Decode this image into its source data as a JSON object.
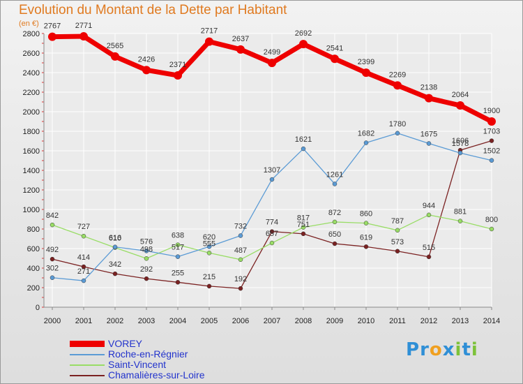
{
  "title": "Evolution du Montant de la Dette par Habitant",
  "unit": "(en €)",
  "brand": {
    "text": "Proxiti",
    "letters": [
      "P",
      "r",
      "o",
      "x",
      "i",
      "t",
      "i"
    ],
    "colors": [
      "#2f8fd6",
      "#2f8fd6",
      "#f0a020",
      "#2f8fd6",
      "#7dc23a",
      "#2f8fd6",
      "#7dc23a"
    ]
  },
  "chart_data": {
    "type": "line",
    "title": "Evolution du Montant de la Dette par Habitant",
    "ylabel": "(en €)",
    "xlabel": "",
    "x": [
      2000,
      2001,
      2002,
      2003,
      2004,
      2005,
      2006,
      2007,
      2008,
      2009,
      2010,
      2011,
      2012,
      2013,
      2014
    ],
    "ylim": [
      0,
      2800
    ],
    "yticks": [
      0,
      200,
      400,
      600,
      800,
      1000,
      1200,
      1400,
      1600,
      1800,
      2000,
      2200,
      2400,
      2600,
      2800
    ],
    "grid": true,
    "legend_position": "bottom-left",
    "series": [
      {
        "name": "VOREY",
        "color": "#ee0000",
        "values": [
          2767,
          2771,
          2565,
          2426,
          2371,
          2717,
          2637,
          2499,
          2692,
          2541,
          2399,
          2269,
          2138,
          2064,
          1900
        ],
        "labels": [
          "2767",
          "2771",
          "2565",
          "2426",
          "2371",
          "2717",
          "2637",
          "2499",
          "2692",
          "2541",
          "2399",
          "2269",
          "2138",
          "2064",
          "1900"
        ]
      },
      {
        "name": "Roche-en-Régnier",
        "color": "#5b9bd5",
        "values": [
          302,
          271,
          616,
          576,
          517,
          620,
          732,
          1307,
          1621,
          1261,
          1682,
          1780,
          1675,
          1578,
          1502
        ],
        "labels": [
          "302",
          "271",
          "616",
          "576",
          "517",
          "620",
          "732",
          "1307",
          "1621",
          "1261",
          "1682",
          "1780",
          "1675",
          "1578",
          "1502"
        ]
      },
      {
        "name": "Saint-Vincent",
        "color": "#99dd66",
        "values": [
          842,
          727,
          610,
          498,
          638,
          555,
          487,
          657,
          817,
          872,
          860,
          787,
          944,
          881,
          800
        ],
        "labels": [
          "842",
          "727",
          "610",
          "498",
          "638",
          "555",
          "487",
          "657",
          "817",
          "872",
          "860",
          "787",
          "944",
          "881",
          "800"
        ]
      },
      {
        "name": "Chamalières-sur-Loire",
        "color": "#7b2222",
        "values": [
          492,
          414,
          342,
          292,
          255,
          215,
          192,
          774,
          751,
          650,
          619,
          573,
          515,
          1606,
          1703
        ],
        "labels": [
          "492",
          "414",
          "342",
          "292",
          "255",
          "215",
          "192",
          "774",
          "751",
          "650",
          "619",
          "573",
          "515",
          "1606",
          "1703"
        ]
      }
    ]
  }
}
